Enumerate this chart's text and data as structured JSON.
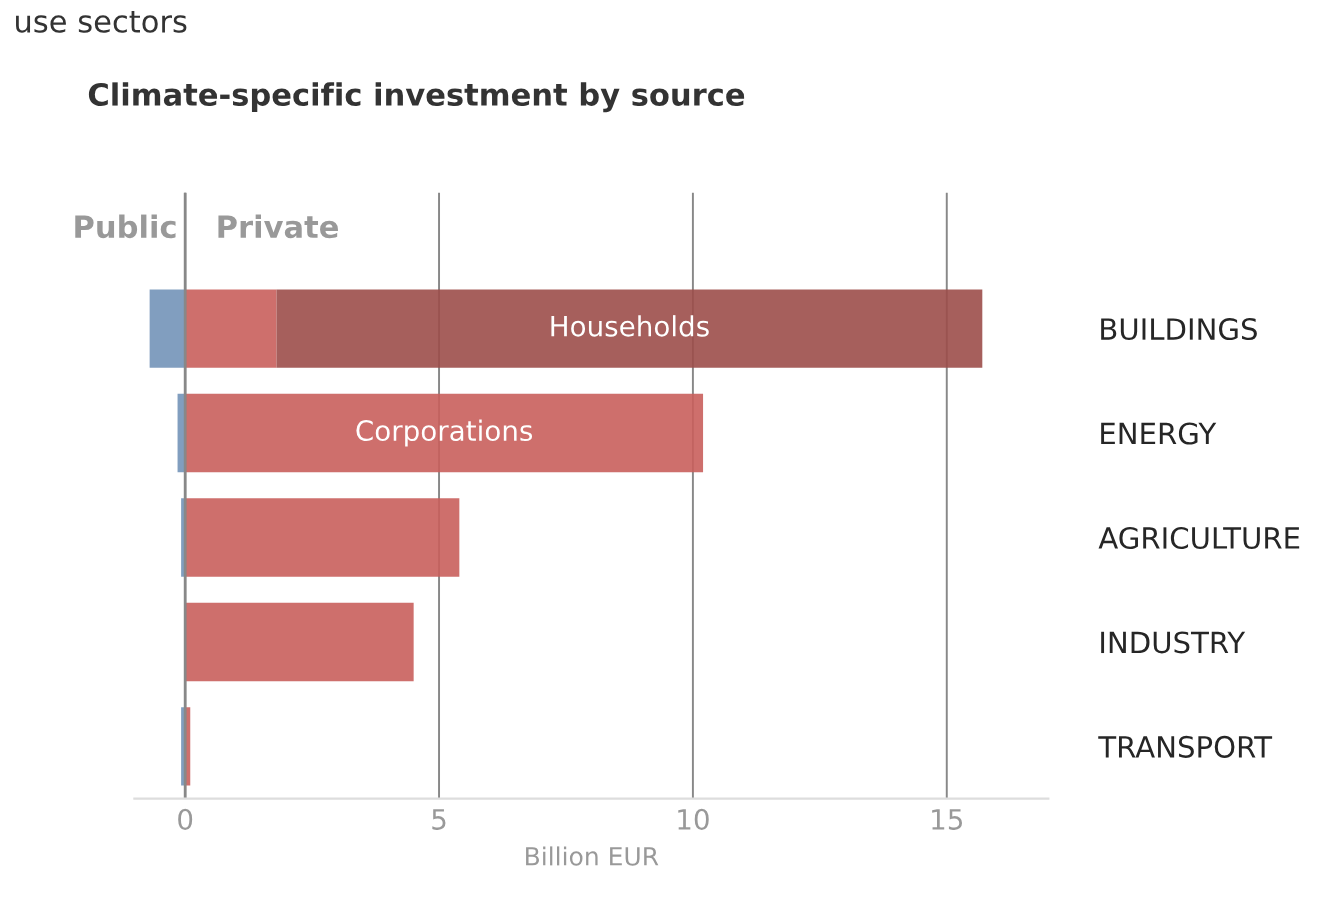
{
  "chart_data": {
    "type": "bar",
    "orientation": "horizontal",
    "stacked": true,
    "title": "Climate-specific investment by source",
    "xlabel": "Billion EUR",
    "categories": [
      "BUILDINGS",
      "ENERGY",
      "AGRICULTURE",
      "INDUSTRY",
      "TRANSPORT"
    ],
    "series": [
      {
        "name": "Public",
        "color": "#7394b8",
        "values": [
          -0.7,
          -0.15,
          -0.08,
          0,
          -0.08
        ]
      },
      {
        "name": "Corporations",
        "color": "#c95f5c",
        "values": [
          1.8,
          10.2,
          5.4,
          4.5,
          0.1
        ]
      },
      {
        "name": "Households",
        "color": "#9c4e4a",
        "values": [
          13.9,
          0,
          0,
          0,
          0
        ]
      }
    ],
    "xlim": [
      -1,
      17
    ],
    "xticks": [
      0,
      5,
      10,
      15
    ],
    "grid": "x",
    "annotations": [
      "use sectors",
      "Private"
    ]
  }
}
